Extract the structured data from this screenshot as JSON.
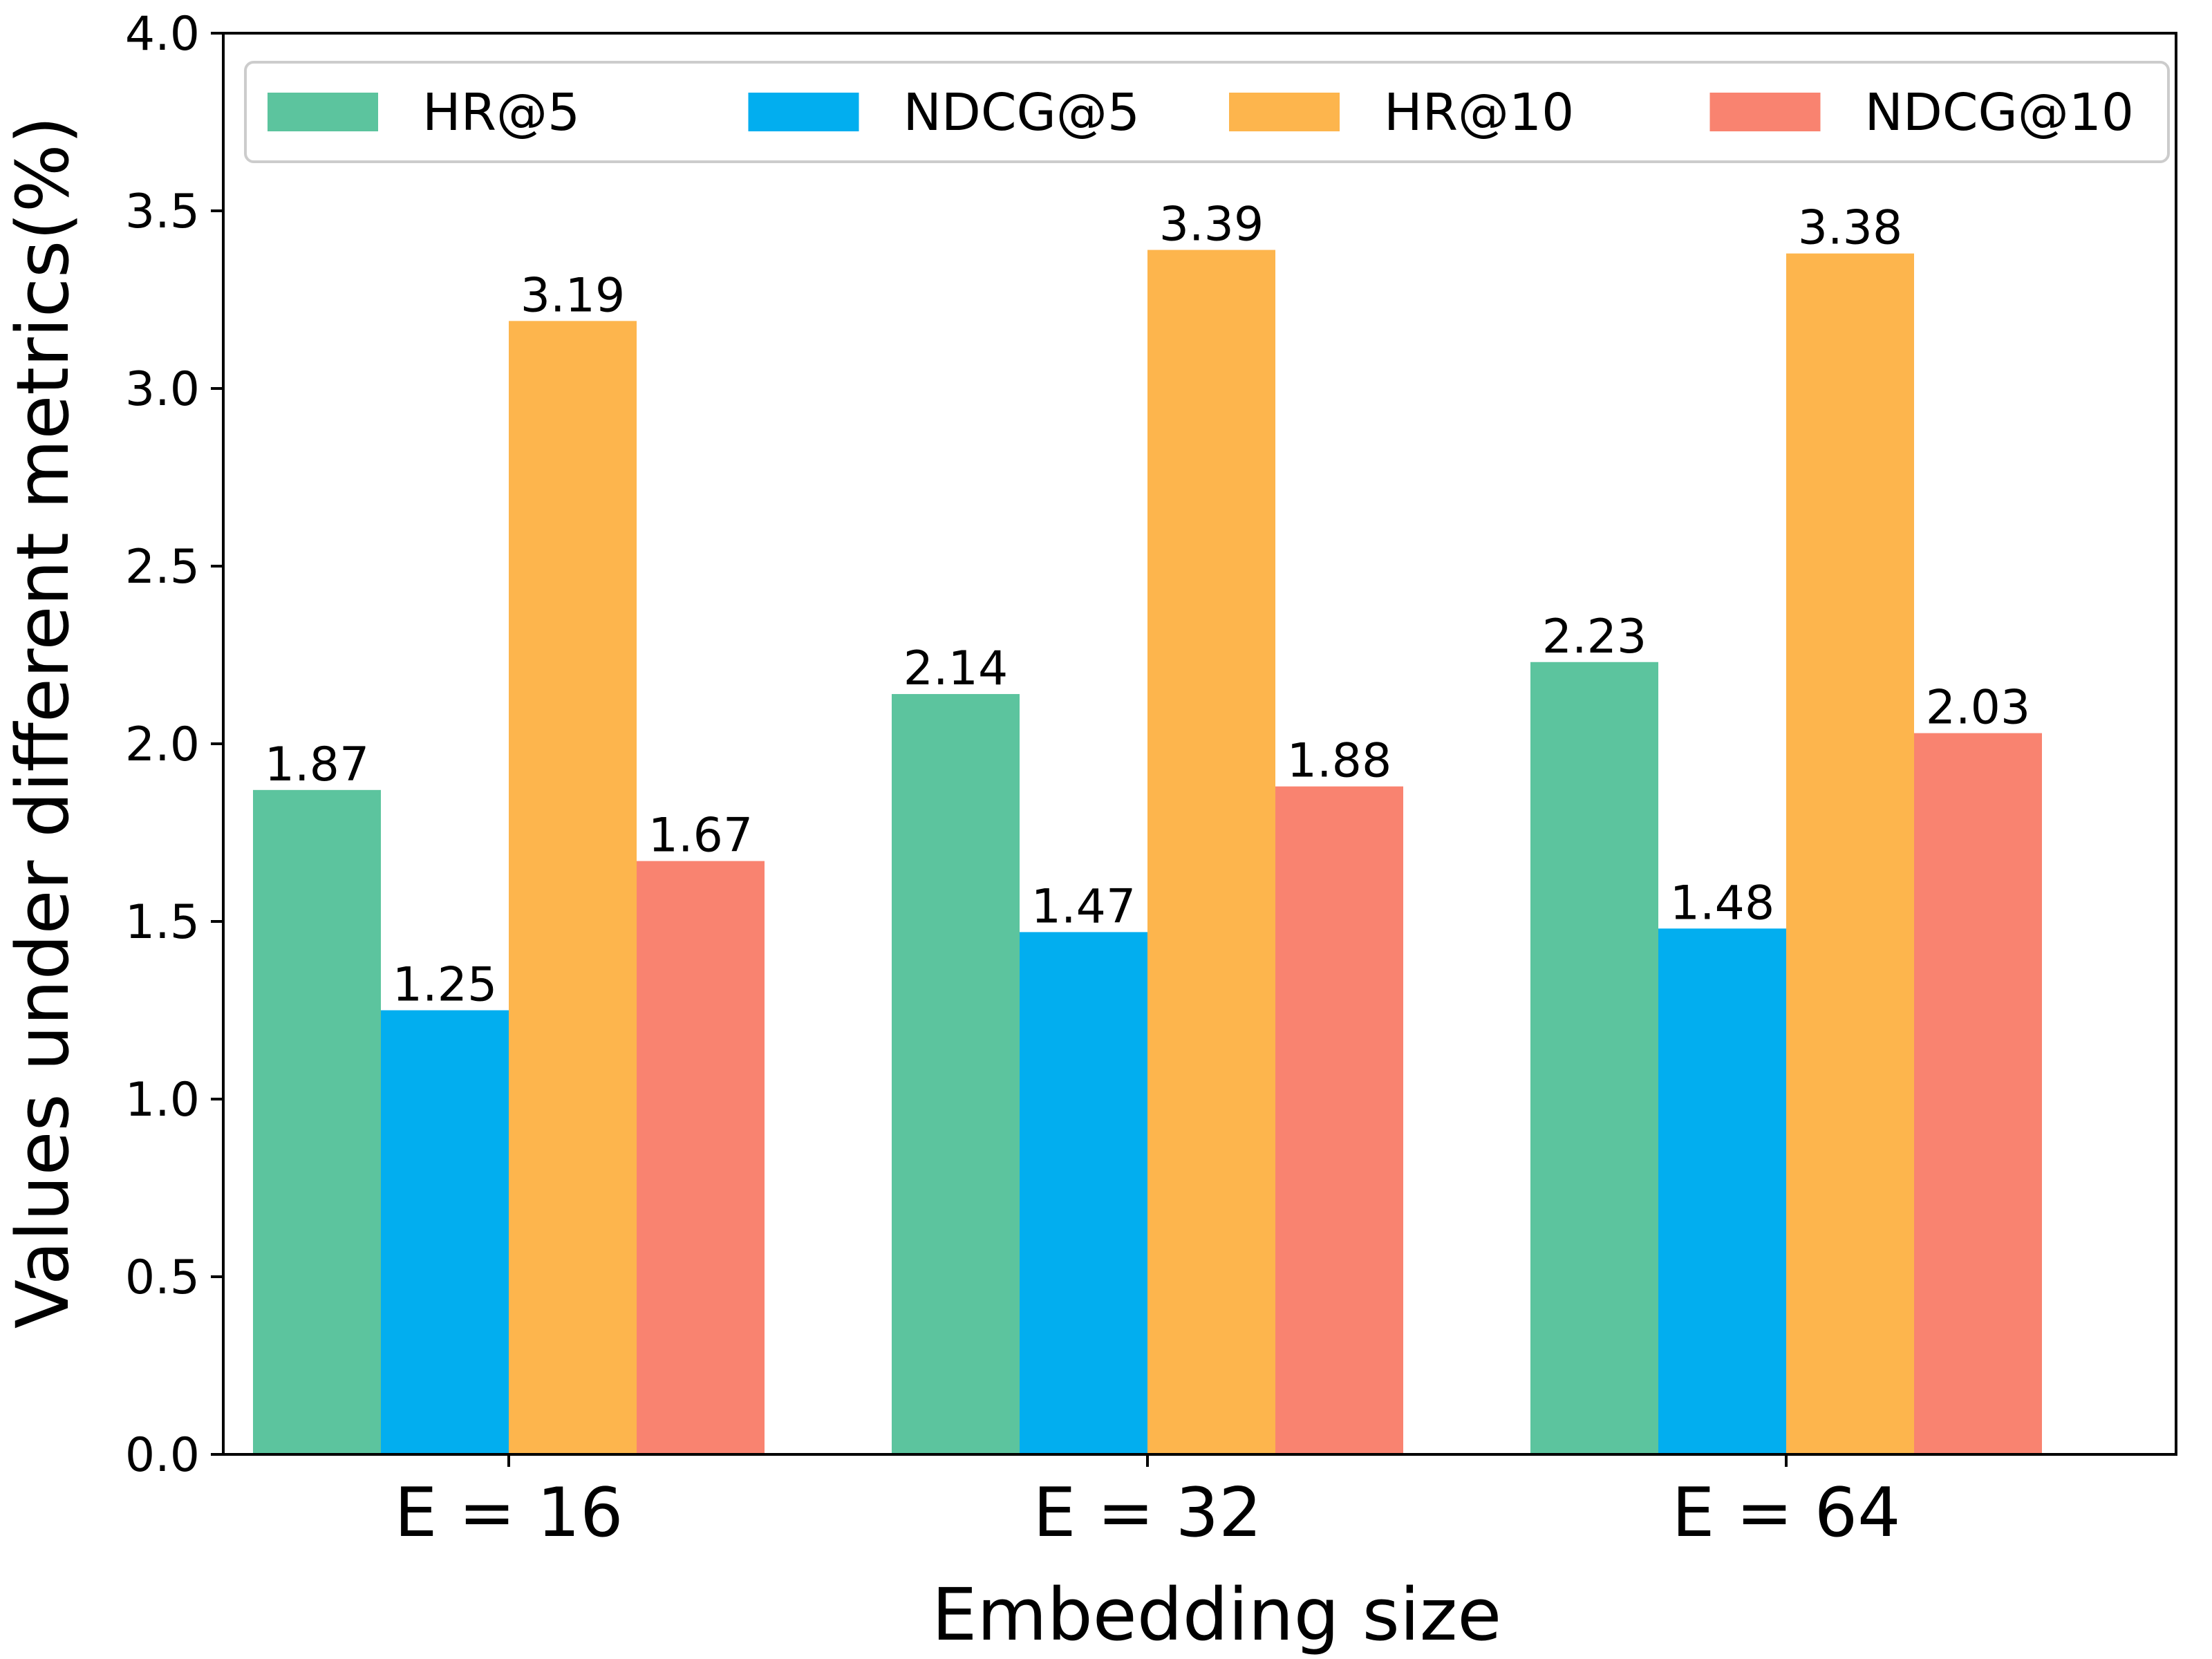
{
  "chart_data": {
    "type": "bar",
    "title": "",
    "xlabel": "Embedding size",
    "ylabel": "Values under different metrics(%)",
    "categories": [
      "E = 16",
      "E = 32",
      "E = 64"
    ],
    "series": [
      {
        "name": "HR@5",
        "color": "#5cc49e",
        "values": [
          1.87,
          2.14,
          2.23
        ],
        "labels": [
          "1.87",
          "2.14",
          "2.23"
        ]
      },
      {
        "name": "NDCG@5",
        "color": "#02aeef",
        "values": [
          1.25,
          1.47,
          1.48
        ],
        "labels": [
          "1.25",
          "1.47",
          "1.48"
        ]
      },
      {
        "name": "HR@10",
        "color": "#fdb54d",
        "values": [
          3.19,
          3.39,
          3.38
        ],
        "labels": [
          "3.19",
          "3.39",
          "3.38"
        ]
      },
      {
        "name": "NDCG@10",
        "color": "#f98370",
        "values": [
          1.67,
          1.88,
          2.03
        ],
        "labels": [
          "1.67",
          "1.88",
          "2.03"
        ]
      }
    ],
    "ylim": [
      0,
      4.0
    ],
    "yticks": [
      "0.0",
      "0.5",
      "1.0",
      "1.5",
      "2.0",
      "2.5",
      "3.0",
      "3.5",
      "4.0"
    ],
    "grid": false,
    "legend_position": "top"
  }
}
